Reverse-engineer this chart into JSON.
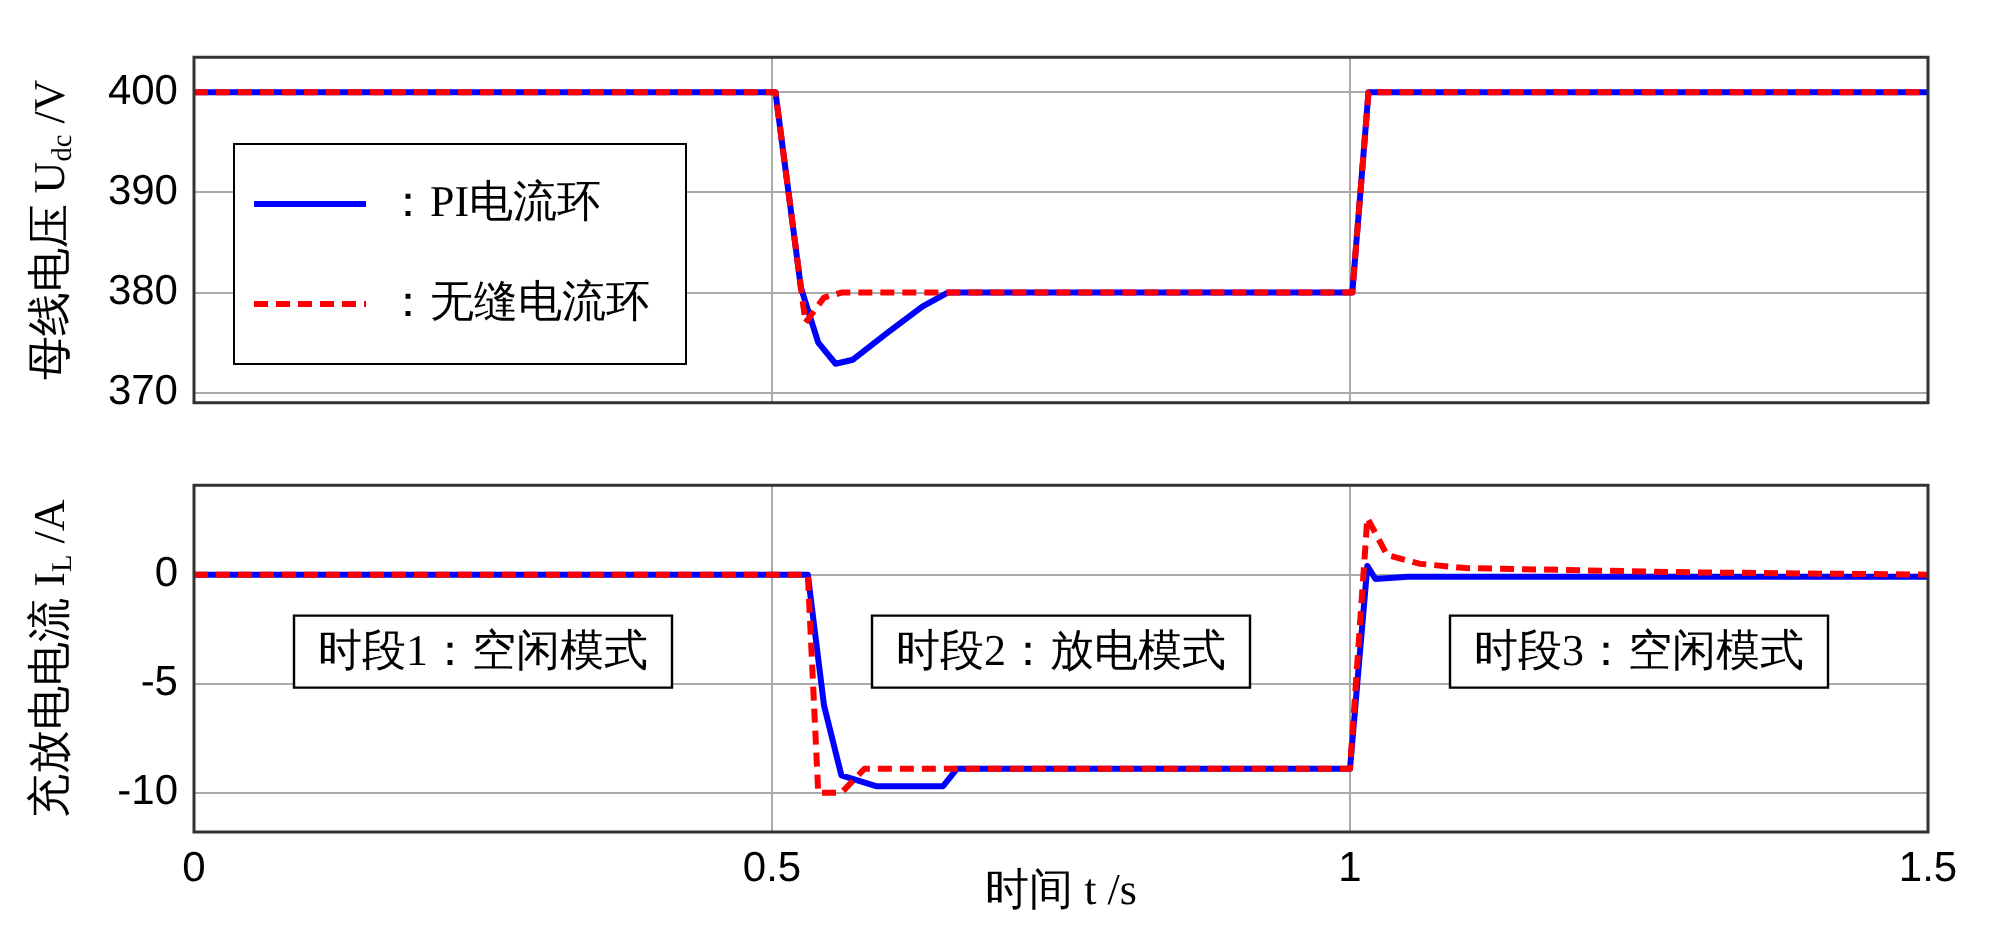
{
  "chart_data": [
    {
      "type": "line",
      "ylabel": "母线电压 U$_{dc}$ /V",
      "xlim": [
        0,
        1.5
      ],
      "xticks": [
        0,
        0.5,
        1,
        1.5
      ],
      "ylim": [
        369,
        403.5
      ],
      "yticks": [
        370,
        380,
        390,
        400
      ],
      "tick_labels": "y",
      "grid": true,
      "legend": "left",
      "series": [
        {
          "name": "：PI电流环",
          "color": "#0000ff",
          "line_style": "solid",
          "x": [
            0,
            0.5,
            0.503,
            0.525,
            0.54,
            0.555,
            0.57,
            0.6,
            0.63,
            0.652,
            1.0,
            1.002,
            1.016,
            1.5
          ],
          "values": [
            400,
            400,
            400,
            380.5,
            375,
            372.9,
            373.3,
            376,
            378.6,
            380,
            380,
            380,
            400,
            400
          ]
        },
        {
          "name": "：无缝电流环",
          "color": "#ff0000",
          "line_style": "dashed",
          "x": [
            0,
            0.5,
            0.503,
            0.529,
            0.545,
            0.56,
            1.0,
            1.002,
            1.016,
            1.5
          ],
          "values": [
            400,
            400,
            400,
            377,
            379.5,
            380,
            380,
            380,
            400,
            400
          ]
        }
      ]
    },
    {
      "type": "line",
      "xlabel": "时间 t /s",
      "ylabel": "充放电电流 I$_{L}$ /A",
      "xlim": [
        0,
        1.5
      ],
      "xticks": [
        0,
        0.5,
        1,
        1.5
      ],
      "ylim": [
        -11.8,
        4.1
      ],
      "yticks": [
        -10,
        -5,
        0
      ],
      "grid": true,
      "annotations": [
        "时段1：空闲模式",
        "时段2：放电模式",
        "时段3：空闲模式"
      ],
      "series": [
        {
          "color": "#0000ff",
          "line_style": "solid",
          "x": [
            0,
            0.531,
            0.545,
            0.56,
            0.59,
            0.648,
            0.66,
            1.0,
            1.015,
            1.022,
            1.05,
            1.5
          ],
          "values": [
            0,
            0,
            -6,
            -9.2,
            -9.7,
            -9.7,
            -8.9,
            -8.9,
            0.4,
            -0.2,
            -0.1,
            -0.1
          ]
        },
        {
          "color": "#ff0000",
          "line_style": "dashed",
          "x": [
            0,
            0.531,
            0.54,
            0.56,
            0.58,
            1.0,
            1.015,
            1.032,
            1.06,
            1.1,
            1.3,
            1.5
          ],
          "values": [
            0,
            0,
            -10,
            -10,
            -8.9,
            -8.9,
            2.6,
            0.9,
            0.5,
            0.3,
            0.1,
            0
          ]
        }
      ]
    }
  ]
}
